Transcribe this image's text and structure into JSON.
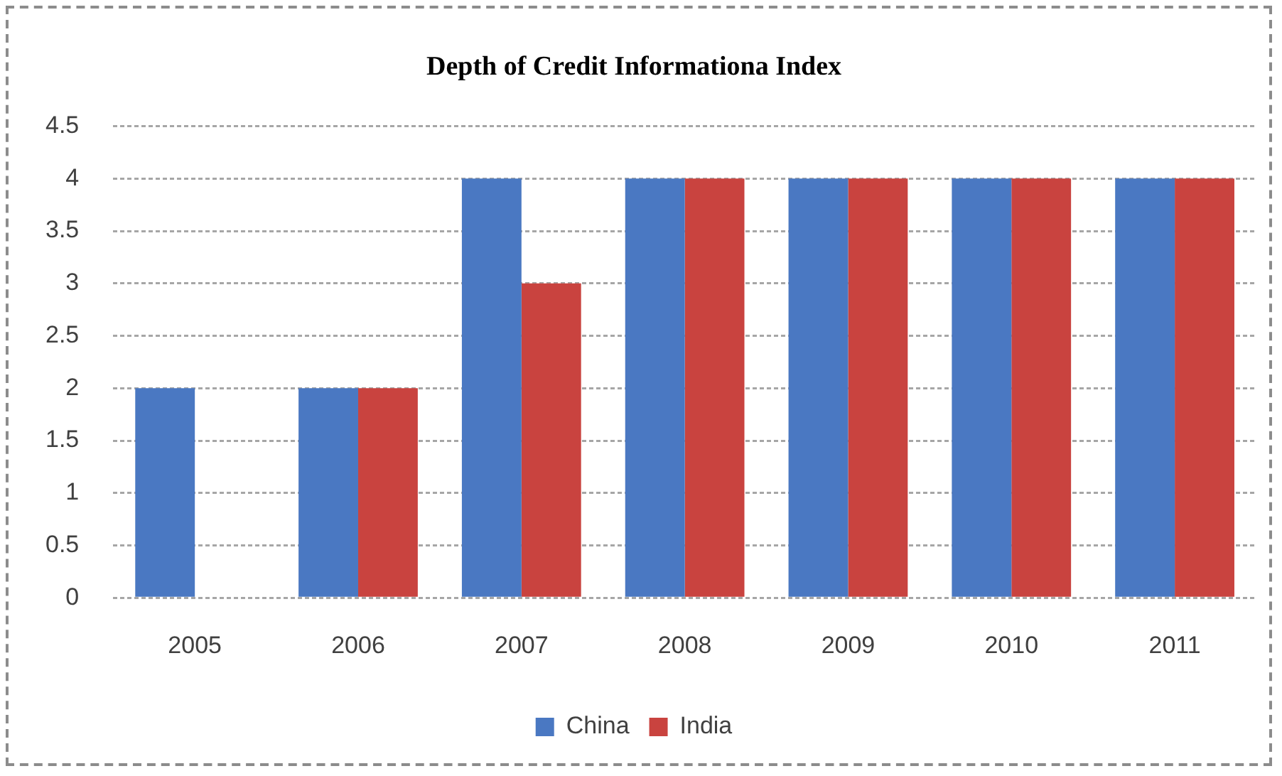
{
  "chart_data": {
    "type": "bar",
    "title": "Depth of Credit Informationa Index",
    "categories": [
      "2005",
      "2006",
      "2007",
      "2008",
      "2009",
      "2010",
      "2011"
    ],
    "series": [
      {
        "name": "China",
        "color": "#4a78c2",
        "values": [
          2,
          2,
          4,
          4,
          4,
          4,
          4
        ]
      },
      {
        "name": "India",
        "color": "#c9433f",
        "values": [
          null,
          2,
          3,
          4,
          4,
          4,
          4
        ]
      }
    ],
    "ylim": [
      0,
      4.5
    ],
    "yticks": [
      0,
      0.5,
      1,
      1.5,
      2,
      2.5,
      3,
      3.5,
      4,
      4.5
    ],
    "grid": "y",
    "legend": "bottom"
  }
}
